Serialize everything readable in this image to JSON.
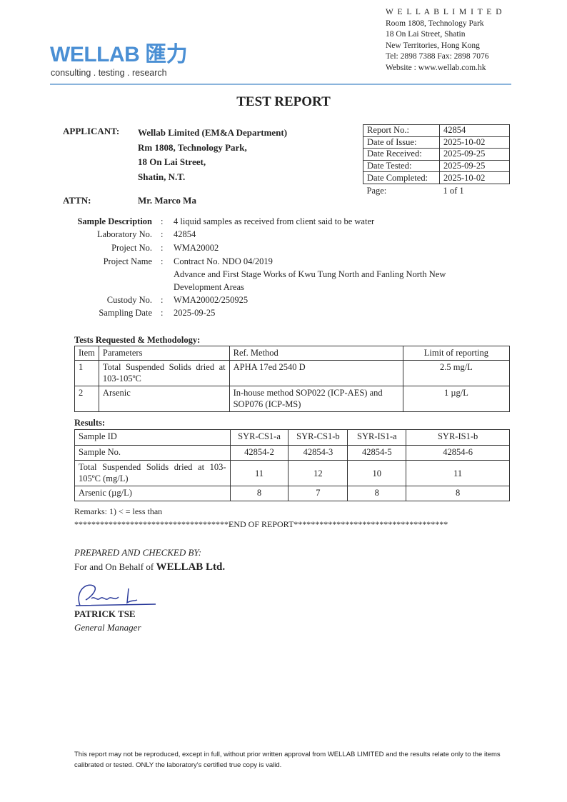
{
  "header": {
    "logo": "WELLAB 匯力",
    "tagline": "consulting . testing . research",
    "brand_color": "#4a8fd4",
    "address": [
      "W E L L A B   L I M I T E D",
      "Room 1808, Technology Park",
      "18 On Lai Street, Shatin",
      "New Territories, Hong Kong",
      "Tel: 2898 7388 Fax: 2898 7076",
      "Website : www.wellab.com.hk"
    ]
  },
  "title": "TEST REPORT",
  "applicant": {
    "label": "APPLICANT:",
    "lines": [
      "Wellab Limited (EM&A Department)",
      "Rm 1808, Technology Park,",
      "18 On Lai Street,",
      "Shatin, N.T."
    ]
  },
  "attn": {
    "label": "ATTN:",
    "value": "Mr. Marco Ma"
  },
  "report_info": [
    [
      "Report No.:",
      "42854"
    ],
    [
      "Date of Issue:",
      "2025-10-02"
    ],
    [
      "Date Received:",
      "2025-09-25"
    ],
    [
      "Date Tested:",
      "2025-09-25"
    ],
    [
      "Date Completed:",
      "2025-10-02"
    ],
    [
      "Page:",
      "1 of 1"
    ]
  ],
  "sample": {
    "desc_label": "Sample Description",
    "desc": "4 liquid samples as received from client said to be water",
    "lab_label": "Laboratory No.",
    "lab": "42854",
    "proj_label": "Project No.",
    "proj": "WMA20002",
    "name_label": "Project Name",
    "name": [
      "Contract No. NDO 04/2019",
      "Advance and First Stage Works of Kwu Tung North and Fanling North New",
      "Development Areas"
    ],
    "custody_label": "Custody No.",
    "custody": "WMA20002/250925",
    "date_label": "Sampling Date",
    "date": "2025-09-25",
    "colon": ":"
  },
  "tests": {
    "heading": "Tests Requested & Methodology:",
    "headers": [
      "Item",
      "Parameters",
      "Ref. Method",
      "Limit of reporting"
    ],
    "rows": [
      [
        "1",
        "Total Suspended Solids dried at 103-105ºC",
        "APHA 17ed 2540 D",
        "2.5 mg/L"
      ],
      [
        "2",
        "Arsenic",
        "In-house method SOP022 (ICP-AES) and SOP076 (ICP-MS)",
        "1 µg/L"
      ]
    ]
  },
  "results": {
    "heading": "Results:",
    "rows": [
      [
        "Sample ID",
        "SYR-CS1-a",
        "SYR-CS1-b",
        "SYR-IS1-a",
        "SYR-IS1-b"
      ],
      [
        "Sample No.",
        "42854-2",
        "42854-3",
        "42854-5",
        "42854-6"
      ],
      [
        "Total Suspended Solids dried at 103-105ºC (mg/L)",
        "11",
        "12",
        "10",
        "11"
      ],
      [
        "Arsenic (µg/L)",
        "8",
        "7",
        "8",
        "8"
      ]
    ]
  },
  "remarks": "Remarks:  1) < = less than",
  "end": "************************************END OF REPORT************************************",
  "sign": {
    "prepared": "PREPARED AND CHECKED BY:",
    "behalf": "For and On Behalf of",
    "company": "WELLAB Ltd.",
    "name": "PATRICK TSE",
    "role": "General Manager"
  },
  "footer": "This report may not be reproduced, except in full, without prior written approval from WELLAB LIMITED and the results relate only to the items calibrated or tested. ONLY the laboratory's certified true copy is valid."
}
